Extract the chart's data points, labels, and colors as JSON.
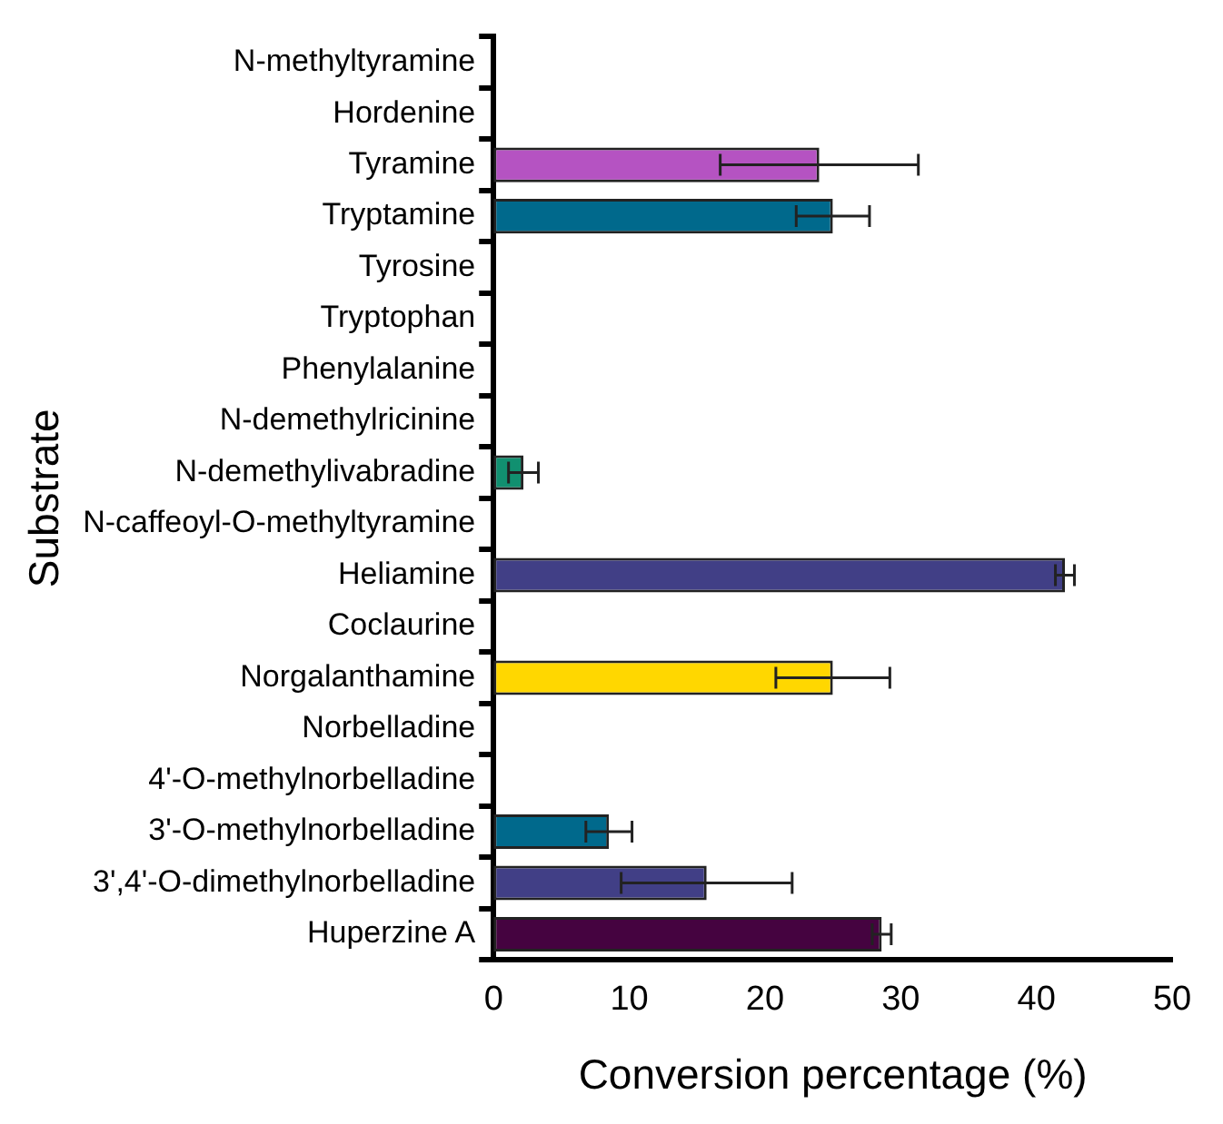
{
  "chart_data": {
    "type": "bar",
    "orientation": "horizontal",
    "xlabel": "Conversion percentage (%)",
    "ylabel": "Substrate",
    "categories": [
      "N-methyltyramine",
      "Hordenine",
      "Tyramine",
      "Tryptamine",
      "Tyrosine",
      "Tryptophan",
      "Phenylalanine",
      "N-demethylricinine",
      "N-demethylivabradine",
      "N-caffeoyl-O-methyltyramine",
      "Heliamine",
      "Coclaurine",
      "Norgalanthamine",
      "Norbelladine",
      "4'-O-methylnorbelladine",
      "3'-O-methylnorbelladine",
      "3',4'-O-dimethylnorbelladine",
      "Huperzine A"
    ],
    "values": [
      0,
      0,
      24,
      25,
      0,
      0,
      0,
      0,
      2.2,
      0,
      42.1,
      0,
      25,
      0,
      0,
      8.5,
      15.7,
      28.6
    ],
    "errors": [
      null,
      null,
      7.3,
      2.7,
      null,
      null,
      null,
      null,
      1.1,
      null,
      0.7,
      null,
      4.2,
      null,
      null,
      1.7,
      6.3,
      0.7
    ],
    "colors": [
      "#b553c2",
      "#b553c2",
      "#b553c2",
      "#00698c",
      "#00698c",
      "#00698c",
      "#00698c",
      "#119070",
      "#119070",
      "#413f86",
      "#413f86",
      "#413f86",
      "#ffd700",
      "#00698c",
      "#00698c",
      "#00698c",
      "#413f86",
      "#450340"
    ],
    "xlim": [
      0,
      50
    ],
    "xticks": [
      0,
      10,
      20,
      30,
      40,
      50
    ],
    "grid": false,
    "legend": false
  }
}
